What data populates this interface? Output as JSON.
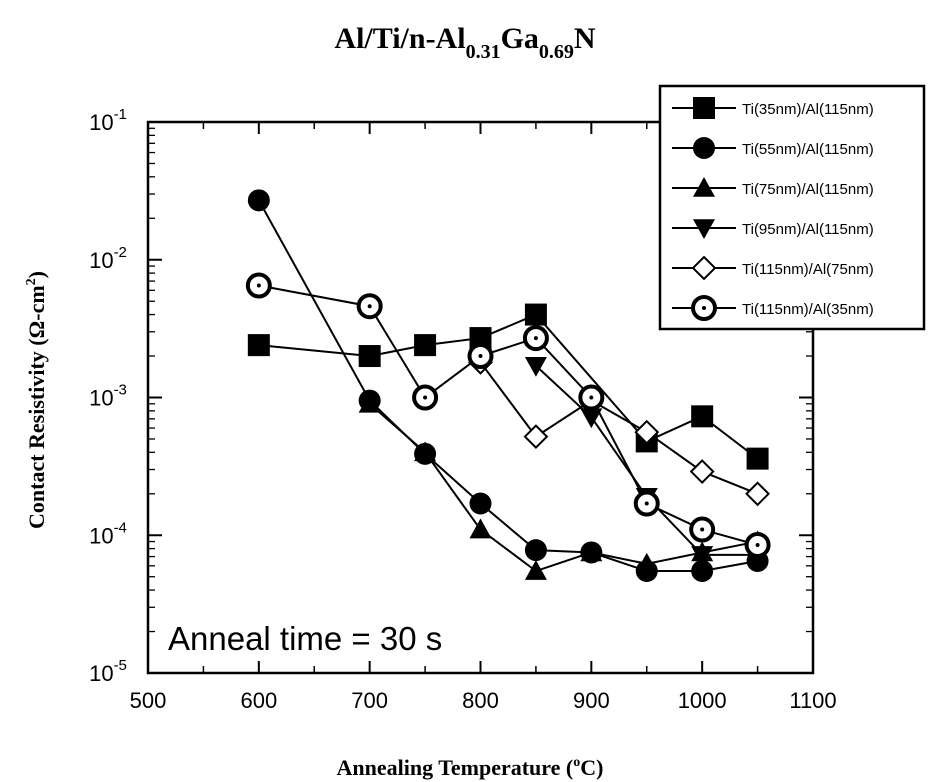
{
  "chart_data": {
    "type": "line",
    "title": {
      "parts": [
        {
          "text": "Al/Ti/n-Al",
          "sub": false
        },
        {
          "text": "0.31",
          "sub": true
        },
        {
          "text": "Ga",
          "sub": false
        },
        {
          "text": "0.69",
          "sub": true
        },
        {
          "text": "N",
          "sub": false
        }
      ]
    },
    "xlabel": {
      "main": "Annealing Temperature (",
      "sup": "o",
      "tail": "C)"
    },
    "ylabel": {
      "main": "Contact Resistivity (Ω-cm",
      "sup": "2",
      "tail": ")"
    },
    "x_scale": "linear",
    "y_scale": "log",
    "xlim": [
      500,
      1100
    ],
    "ylim": [
      1e-05,
      0.1
    ],
    "x_ticks": [
      500,
      600,
      700,
      800,
      900,
      1000,
      1100
    ],
    "x_tick_labels": [
      "500",
      "600",
      "700",
      "800",
      "900",
      "1000",
      "1100"
    ],
    "y_ticks": [
      1e-05,
      0.0001,
      0.001,
      0.01,
      0.1
    ],
    "y_tick_labels": [
      {
        "base": "10",
        "exp": "-5"
      },
      {
        "base": "10",
        "exp": "-4"
      },
      {
        "base": "10",
        "exp": "-3"
      },
      {
        "base": "10",
        "exp": "-2"
      },
      {
        "base": "10",
        "exp": "-1"
      }
    ],
    "grid": false,
    "legend_position": "top-right",
    "annotation": "Anneal time = 30 s",
    "series": [
      {
        "name": "Ti(35nm)/Al(115nm)",
        "marker": "square-filled",
        "x": [
          600,
          700,
          750,
          800,
          850,
          950,
          1000,
          1050
        ],
        "y": [
          0.0024,
          0.002,
          0.0024,
          0.0027,
          0.004,
          0.00048,
          0.00073,
          0.00036
        ]
      },
      {
        "name": "Ti(55nm)/Al(115nm)",
        "marker": "circle-filled",
        "x": [
          600,
          700,
          750,
          800,
          850,
          900,
          950,
          1000,
          1050
        ],
        "y": [
          0.027,
          0.00095,
          0.00039,
          0.00017,
          7.8e-05,
          7.5e-05,
          5.5e-05,
          5.5e-05,
          6.5e-05
        ]
      },
      {
        "name": "Ti(75nm)/Al(115nm)",
        "marker": "triangle-up-filled",
        "x": [
          700,
          750,
          800,
          850,
          900,
          950,
          1000,
          1050
        ],
        "y": [
          0.0009,
          0.0004,
          0.00011,
          5.5e-05,
          7.5e-05,
          6.2e-05,
          7.5e-05,
          9e-05
        ]
      },
      {
        "name": "Ti(95nm)/Al(115nm)",
        "marker": "triangle-down-filled",
        "x": [
          850,
          900,
          950,
          1000,
          1050
        ],
        "y": [
          0.0017,
          0.00072,
          0.00019,
          7.2e-05,
          7.2e-05
        ]
      },
      {
        "name": "Ti(115nm)/Al(75nm)",
        "marker": "diamond-open",
        "x": [
          800,
          850,
          900,
          950,
          1000,
          1050
        ],
        "y": [
          0.0018,
          0.00052,
          0.00095,
          0.00056,
          0.00029,
          0.0002
        ]
      },
      {
        "name": "Ti(115nm)/Al(35nm)",
        "marker": "circle-dot-open",
        "x": [
          600,
          700,
          750,
          800,
          850,
          900,
          950,
          1000,
          1050
        ],
        "y": [
          0.0065,
          0.0046,
          0.001,
          0.002,
          0.0027,
          0.001,
          0.00017,
          0.00011,
          8.5e-05
        ]
      }
    ]
  }
}
